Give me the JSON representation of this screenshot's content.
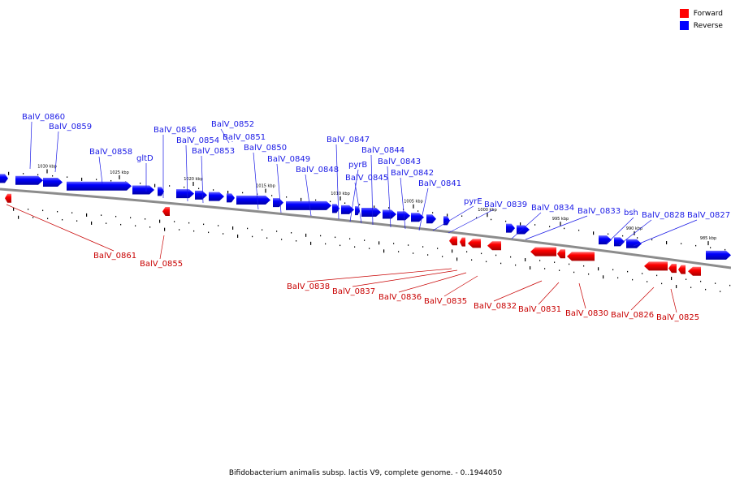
{
  "caption": "Bifidobacterium animalis subsp. lactis V9, complete genome. - 0..1944050",
  "legend": [
    {
      "label": "Forward",
      "color": "#ff0000"
    },
    {
      "label": "Reverse",
      "color": "#0000ff"
    }
  ],
  "colors": {
    "forward": "#ff0000",
    "reverse": "#0000ff",
    "forward_label": "#c80000",
    "reverse_label": "#1a1ae6",
    "backbone": "#8c8c8c"
  },
  "scale_labels": [
    "1030 kbp",
    "1025 kbp",
    "1020 kbp",
    "1015 kbp",
    "1010 kbp",
    "1005 kbp",
    "1000 kbp",
    "995 kbp",
    "990 kbp",
    "985 kbp"
  ],
  "reverse_genes": [
    "BalV_0860",
    "BalV_0859",
    "BalV_0858",
    "gltD",
    "BalV_0856",
    "BalV_0854",
    "BalV_0853",
    "BalV_0852",
    "BalV_0851",
    "BalV_0850",
    "BalV_0849",
    "BalV_0848",
    "BalV_0847",
    "pyrB",
    "BalV_0845",
    "BalV_0844",
    "BalV_0843",
    "BalV_0842",
    "BalV_0841",
    "pyrE",
    "BalV_0839",
    "BalV_0834",
    "BalV_0833",
    "bsh",
    "BalV_0828",
    "BalV_0827"
  ],
  "forward_genes": [
    "BalV_0861",
    "BalV_0855",
    "BalV_0838",
    "BalV_0837",
    "BalV_0836",
    "BalV_0835",
    "BalV_0832",
    "BalV_0831",
    "BalV_0830",
    "BalV_0826",
    "BalV_0825"
  ]
}
